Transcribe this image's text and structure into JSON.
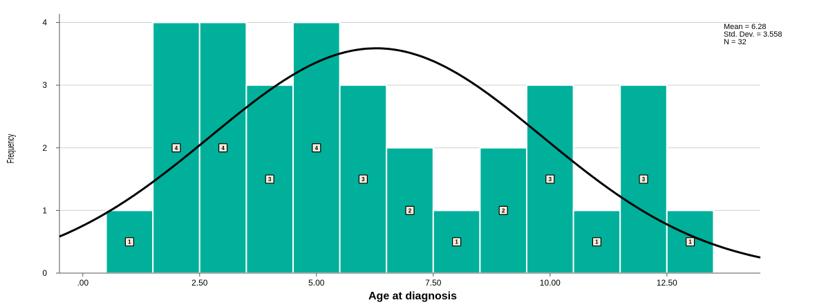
{
  "chart_data": {
    "type": "bar",
    "xlabel": "Age at diagnosis",
    "ylabel": "Frequency",
    "xlim": [
      -0.5,
      14.5
    ],
    "ylim": [
      0,
      4.05
    ],
    "x_ticks": [
      0,
      2.5,
      5,
      7.5,
      10,
      12.5
    ],
    "x_tick_labels": [
      ".00",
      "2.50",
      "5.00",
      "7.50",
      "10.00",
      "12.50"
    ],
    "y_ticks": [
      0,
      1,
      2,
      3,
      4
    ],
    "y_tick_labels": [
      "0",
      "1",
      "2",
      "3",
      "4"
    ],
    "grid": true,
    "bar_color": "#00b09b",
    "bars": [
      {
        "center": 1,
        "value": 1,
        "label": "1"
      },
      {
        "center": 2,
        "value": 4,
        "label": "4"
      },
      {
        "center": 3,
        "value": 4,
        "label": "4"
      },
      {
        "center": 4,
        "value": 3,
        "label": "3"
      },
      {
        "center": 5,
        "value": 4,
        "label": "4"
      },
      {
        "center": 6,
        "value": 3,
        "label": "3"
      },
      {
        "center": 7,
        "value": 2,
        "label": "2"
      },
      {
        "center": 8,
        "value": 1,
        "label": "1"
      },
      {
        "center": 9,
        "value": 2,
        "label": "2"
      },
      {
        "center": 10,
        "value": 3,
        "label": "3"
      },
      {
        "center": 11,
        "value": 1,
        "label": "1"
      },
      {
        "center": 12,
        "value": 3,
        "label": "3"
      },
      {
        "center": 13,
        "value": 1,
        "label": "1"
      }
    ],
    "normal_curve": {
      "mean": 6.28,
      "std_dev": 3.558,
      "n": 32,
      "bin_width": 1
    },
    "stats": {
      "mean_text": "Mean = 6.28",
      "std_text": "Std. Dev. = 3.558",
      "n_text": "N = 32"
    }
  }
}
